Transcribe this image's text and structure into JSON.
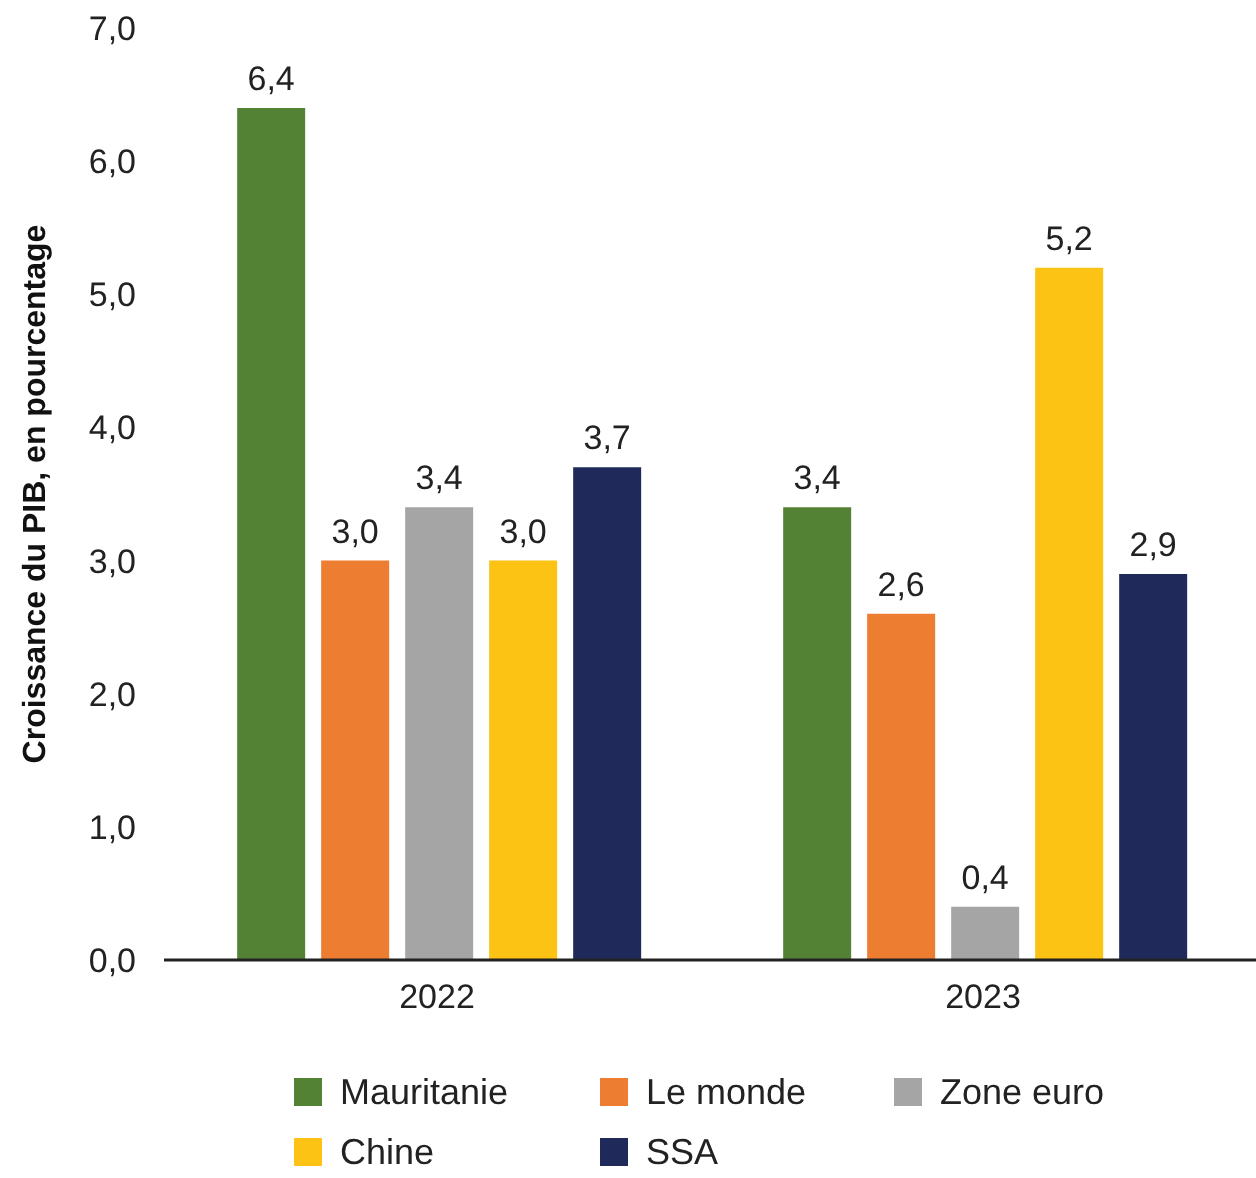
{
  "chart_data": {
    "type": "bar",
    "ylabel": "Croissance du PIB, en pourcentage",
    "categories": [
      "2022",
      "2023"
    ],
    "series": [
      {
        "name": "Mauritanie",
        "color": "#548235",
        "values": [
          6.4,
          3.4
        ],
        "value_labels": [
          "6,4",
          "3,4"
        ]
      },
      {
        "name": "Le monde",
        "color": "#ed7d31",
        "values": [
          3.0,
          2.6
        ],
        "value_labels": [
          "3,0",
          "2,6"
        ]
      },
      {
        "name": "Zone euro",
        "color": "#a5a5a5",
        "values": [
          3.4,
          0.4
        ],
        "value_labels": [
          "3,4",
          "0,4"
        ]
      },
      {
        "name": "Chine",
        "color": "#fcc214",
        "values": [
          3.0,
          5.2
        ],
        "value_labels": [
          "3,0",
          "5,2"
        ]
      },
      {
        "name": "SSA",
        "color": "#1f2a5b",
        "values": [
          3.7,
          2.9
        ],
        "value_labels": [
          "3,7",
          "2,9"
        ]
      }
    ],
    "ylim": [
      0,
      7
    ],
    "yticks": [
      {
        "value": 0,
        "label": "0,0"
      },
      {
        "value": 1,
        "label": "1,0"
      },
      {
        "value": 2,
        "label": "2,0"
      },
      {
        "value": 3,
        "label": "3,0"
      },
      {
        "value": 4,
        "label": "4,0"
      },
      {
        "value": 5,
        "label": "5,0"
      },
      {
        "value": 6,
        "label": "6,0"
      },
      {
        "value": 7,
        "label": "7,0"
      }
    ],
    "legend": "bottom"
  }
}
